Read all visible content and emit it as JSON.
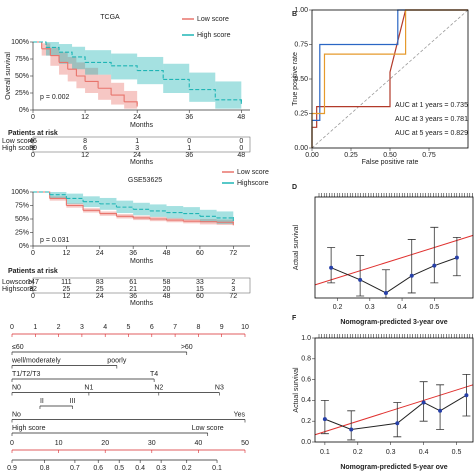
{
  "chart_data": [
    {
      "type": "km",
      "title": "TCGA",
      "xlabel": "Months",
      "ylabel": "Overall survival",
      "p_label": "p = 0.002",
      "xlim": [
        0,
        50
      ],
      "xticks": [
        0,
        12,
        24,
        36,
        48
      ],
      "ylim": [
        0,
        100
      ],
      "yticks": [
        {
          "value": 0,
          "label": "0%"
        },
        {
          "value": 25,
          "label": "25%"
        },
        {
          "value": 50,
          "label": "50%"
        },
        {
          "value": 75,
          "label": "75%"
        },
        {
          "value": 100,
          "label": "100%"
        }
      ],
      "series": [
        {
          "name": "Low score",
          "color": "#e8746c",
          "x": [
            0,
            2,
            4,
            6,
            8,
            10,
            12,
            15,
            18,
            21,
            24
          ],
          "values": [
            100,
            90,
            80,
            70,
            60,
            50,
            42,
            32,
            22,
            12,
            8
          ],
          "lower": [
            100,
            80,
            65,
            52,
            42,
            32,
            25,
            15,
            8,
            2,
            0
          ],
          "upper": [
            100,
            98,
            92,
            85,
            78,
            70,
            62,
            52,
            40,
            28,
            22
          ]
        },
        {
          "name": "High score",
          "color": "#1fb5b5",
          "x": [
            0,
            3,
            6,
            9,
            12,
            18,
            24,
            30,
            36,
            42,
            48
          ],
          "values": [
            100,
            92,
            85,
            78,
            70,
            65,
            58,
            45,
            30,
            15,
            12
          ],
          "lower": [
            100,
            80,
            68,
            60,
            52,
            45,
            38,
            25,
            12,
            2,
            0
          ],
          "upper": [
            100,
            100,
            97,
            93,
            88,
            83,
            78,
            68,
            55,
            42,
            38
          ]
        }
      ],
      "risk_table": {
        "title": "Patients at risk",
        "rows": [
          {
            "name": "Low score",
            "color": "#e8746c",
            "values": [
              46,
              8,
              1,
              0,
              0
            ]
          },
          {
            "name": "High score",
            "color": "#1fb5b5",
            "values": [
              30,
              6,
              3,
              1,
              0
            ]
          }
        ]
      }
    },
    {
      "type": "roc",
      "panel_label": "B",
      "xlabel": "False positive rate",
      "ylabel": "True positive rate",
      "xlim": [
        0,
        1
      ],
      "xticks": [
        {
          "value": 0,
          "label": "0.00"
        },
        {
          "value": 0.25,
          "label": "0.25"
        },
        {
          "value": 0.5,
          "label": "0.50"
        },
        {
          "value": 0.75,
          "label": "0.75"
        }
      ],
      "ylim": [
        0,
        1
      ],
      "yticks": [
        {
          "value": 0,
          "label": "0.00"
        },
        {
          "value": 0.25,
          "label": "0.25"
        },
        {
          "value": 0.5,
          "label": "0.50"
        },
        {
          "value": 0.75,
          "label": "0.75"
        },
        {
          "value": 1,
          "label": "1.00"
        }
      ],
      "series": [
        {
          "name": "AUC at 1 years = 0.735",
          "color": "#b23a2a",
          "x": [
            0,
            0,
            0.03,
            0.03,
            0.5,
            0.5,
            0.6,
            1
          ],
          "values": [
            0,
            0.15,
            0.15,
            0.3,
            0.3,
            0.55,
            1,
            1
          ]
        },
        {
          "name": "AUC at 3 years = 0.781",
          "color": "#2a66c4",
          "x": [
            0,
            0,
            0.05,
            0.05,
            0.55,
            0.55,
            1
          ],
          "values": [
            0,
            0.2,
            0.2,
            0.75,
            0.75,
            1,
            1
          ]
        },
        {
          "name": "AUC at 5 years = 0.829",
          "color": "#e59a2c",
          "x": [
            0,
            0,
            0.08,
            0.08,
            0.6,
            0.6,
            1
          ],
          "values": [
            0,
            0.25,
            0.25,
            0.68,
            0.68,
            1,
            1
          ]
        }
      ]
    },
    {
      "type": "km",
      "title": "GSE53625",
      "xlabel": "Months",
      "p_label": "p = 0.031",
      "xlim": [
        0,
        78
      ],
      "xticks": [
        0,
        12,
        24,
        36,
        48,
        60,
        72
      ],
      "ylim": [
        0,
        100
      ],
      "yticks": [
        {
          "value": 0,
          "label": "0%"
        },
        {
          "value": 25,
          "label": "25%"
        },
        {
          "value": 50,
          "label": "50%"
        },
        {
          "value": 75,
          "label": "75%"
        },
        {
          "value": 100,
          "label": "100%"
        }
      ],
      "series": [
        {
          "name": "Low score",
          "color": "#e8746c",
          "x": [
            0,
            6,
            12,
            18,
            24,
            30,
            36,
            42,
            48,
            54,
            60,
            66,
            72
          ],
          "values": [
            100,
            88,
            75,
            66,
            60,
            55,
            52,
            50,
            48,
            46,
            45,
            44,
            42
          ],
          "lower": [
            100,
            84,
            71,
            62,
            56,
            51,
            48,
            46,
            44,
            42,
            40,
            39,
            37
          ],
          "upper": [
            100,
            92,
            79,
            70,
            64,
            59,
            56,
            54,
            52,
            50,
            50,
            49,
            47
          ]
        },
        {
          "name": "Highscore",
          "color": "#1fb5b5",
          "x": [
            0,
            6,
            12,
            18,
            24,
            30,
            36,
            42,
            48,
            54,
            60,
            66,
            72
          ],
          "values": [
            100,
            95,
            88,
            82,
            78,
            72,
            68,
            65,
            62,
            60,
            55,
            52,
            50
          ],
          "lower": [
            100,
            88,
            78,
            72,
            67,
            61,
            57,
            54,
            51,
            49,
            44,
            41,
            38
          ],
          "upper": [
            100,
            100,
            97,
            92,
            89,
            84,
            80,
            77,
            74,
            72,
            67,
            64,
            62
          ]
        }
      ],
      "risk_table": {
        "title": "Patients at risk",
        "rows": [
          {
            "name": "Lowscore",
            "color": "#e8746c",
            "values": [
              147,
              111,
              83,
              61,
              58,
              33,
              2
            ]
          },
          {
            "name": "Highscore",
            "color": "#1fb5b5",
            "values": [
              32,
              25,
              25,
              21,
              20,
              15,
              3
            ]
          }
        ]
      }
    },
    {
      "type": "calibration",
      "panel_label": "D",
      "xlabel": "Nomogram-predicted 3-year ove",
      "ylabel": "Actual survival",
      "xlim": [
        0.13,
        0.62
      ],
      "xticks": [
        0.2,
        0.3,
        0.4,
        0.5
      ],
      "ylim": [
        0,
        1
      ],
      "x": [
        0.18,
        0.27,
        0.35,
        0.43,
        0.5,
        0.57
      ],
      "values": [
        0.3,
        0.18,
        0.05,
        0.22,
        0.32,
        0.4
      ],
      "lower": [
        0.15,
        0.02,
        0,
        0.05,
        0.15,
        0.22
      ],
      "upper": [
        0.5,
        0.42,
        0.28,
        0.58,
        0.7,
        0.6
      ]
    },
    {
      "type": "calibration",
      "panel_label": "F",
      "xlabel": "Nomogram-predicted 5-year ove",
      "ylabel": "Actual survival",
      "xlim": [
        0.07,
        0.55
      ],
      "xticks": [
        0.1,
        0.2,
        0.3,
        0.4,
        0.5
      ],
      "ylim": [
        0,
        1
      ],
      "yticks": [
        {
          "value": 0,
          "label": "0.0"
        },
        0.2,
        0.4,
        0.6,
        0.8,
        {
          "value": 1,
          "label": "1.0"
        }
      ],
      "x": [
        0.1,
        0.18,
        0.32,
        0.4,
        0.45,
        0.53
      ],
      "values": [
        0.22,
        0.12,
        0.18,
        0.38,
        0.3,
        0.45
      ],
      "lower": [
        0.08,
        0.02,
        0.05,
        0.2,
        0.12,
        0.25
      ],
      "upper": [
        0.4,
        0.3,
        0.38,
        0.58,
        0.55,
        0.65
      ]
    },
    {
      "type": "nomogram",
      "points_ticks": [
        0,
        1,
        2,
        3,
        4,
        5,
        6,
        7,
        8,
        9,
        10
      ],
      "total_ticks": [
        0,
        10,
        20,
        30,
        40,
        50
      ],
      "rows": [
        {
          "items": [
            {
              "label": "≤60",
              "points": 0
            },
            {
              "label": ">60",
              "points": 7.5
            }
          ]
        },
        {
          "items": [
            {
              "label": "well/moderately",
              "points": 0
            },
            {
              "label": "poorly",
              "points": 4.5
            }
          ]
        },
        {
          "items": [
            {
              "label": "T1/T2/T3",
              "points": 0
            },
            {
              "label": "T4",
              "points": 6.1
            }
          ]
        },
        {
          "items": [
            {
              "label": "N0",
              "points": 0
            },
            {
              "label": "N1",
              "points": 3.3
            },
            {
              "label": "N2",
              "points": 6.3
            },
            {
              "label": "N3",
              "points": 8.9
            }
          ]
        },
        {
          "items": [
            {
              "label": "II",
              "points": 1.2
            },
            {
              "label": "III",
              "points": 2.6
            }
          ]
        },
        {
          "items": [
            {
              "label": "No",
              "points": 0
            },
            {
              "label": "Yes",
              "points": 10
            }
          ]
        },
        {
          "items": [
            {
              "label": "High score",
              "points": 0
            },
            {
              "label": "Low score",
              "points": 8.4
            }
          ]
        }
      ],
      "survival": [
        {
          "value": 0.9,
          "total": 0
        },
        {
          "value": 0.8,
          "total": 7
        },
        {
          "value": 0.7,
          "total": 13.5
        },
        {
          "value": 0.6,
          "total": 18.5
        },
        {
          "value": 0.5,
          "total": 23
        },
        {
          "value": 0.4,
          "total": 27.5
        },
        {
          "value": 0.3,
          "total": 32
        },
        {
          "value": 0.2,
          "total": 37.5
        },
        {
          "value": 0.1,
          "total": 44
        }
      ]
    }
  ]
}
